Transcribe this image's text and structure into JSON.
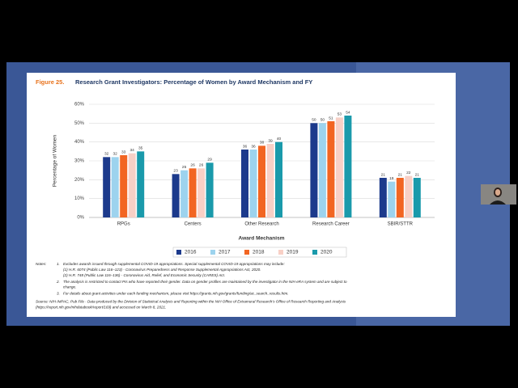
{
  "slide": {
    "figure_label": "Figure 25.",
    "notes_label": "Notes:",
    "notes": [
      {
        "number": "1.",
        "lines": [
          "Excludes awards issued through supplemental COVID-19 appropriations. Special supplemental COVID-19 appropriations may include:",
          "(1) H.R. 6074 (Public Law 116–123) - Coronavirus Preparedness and Response Supplemental Appropriations Act, 2020.",
          "(2) H.R. 748 (Public Law 116–136) - Coronavirus Aid, Relief, and Economic Security (CARES) Act."
        ]
      },
      {
        "number": "2.",
        "lines": [
          "The analysis is restricted to contact PIs who have reported their gender. Data on gender profiles are maintained by the investigator in the NIH eRA system and are subject to",
          "change."
        ]
      },
      {
        "number": "3.",
        "lines": [
          "For details about grant activities under each funding mechanism, please visit https://grants.nih.gov/grants/funding/ac_search_results.htm."
        ]
      }
    ],
    "source_lines": [
      "Source: NIH IMPAC, Pub File - Data produced by the Division of Statistical Analysis and Reporting within the NIH Office of Extramural Research's Office of Research Reporting and Analysis",
      "(https://report.nih.gov/nihdatabook/report/169) and accessed on March 8, 2021."
    ]
  },
  "chart_data": {
    "type": "bar",
    "title": "Research Grant Investigators: Percentage of Women by Award Mechanism and FY",
    "x_label": "Award Mechanism",
    "y_label": "Percentage of Women",
    "categories": [
      "RPGs",
      "Centers",
      "Other Research",
      "Research Career",
      "SBIR/STTR"
    ],
    "series": [
      {
        "name": "2016",
        "color": "#1c3a8c",
        "values": [
          32,
          23,
          36,
          50,
          21
        ]
      },
      {
        "name": "2017",
        "color": "#9dd3ee",
        "values": [
          32,
          25,
          36,
          50,
          19
        ]
      },
      {
        "name": "2018",
        "color": "#f26522",
        "values": [
          33,
          26,
          38,
          51,
          21
        ]
      },
      {
        "name": "2019",
        "color": "#f8d0c6",
        "values": [
          34,
          26,
          39,
          53,
          22
        ]
      },
      {
        "name": "2020",
        "color": "#1a9aab",
        "values": [
          35,
          29,
          40,
          54,
          21
        ]
      }
    ],
    "ylim": [
      0,
      60
    ],
    "yticks": [
      {
        "value": 0,
        "label": "0%"
      },
      {
        "value": 10,
        "label": "10%"
      },
      {
        "value": 20,
        "label": "20%"
      },
      {
        "value": 30,
        "label": "30%"
      },
      {
        "value": 40,
        "label": "40%"
      },
      {
        "value": 50,
        "label": "50%"
      },
      {
        "value": 60,
        "label": "60%"
      }
    ],
    "grid": true,
    "legend": "bottom"
  }
}
